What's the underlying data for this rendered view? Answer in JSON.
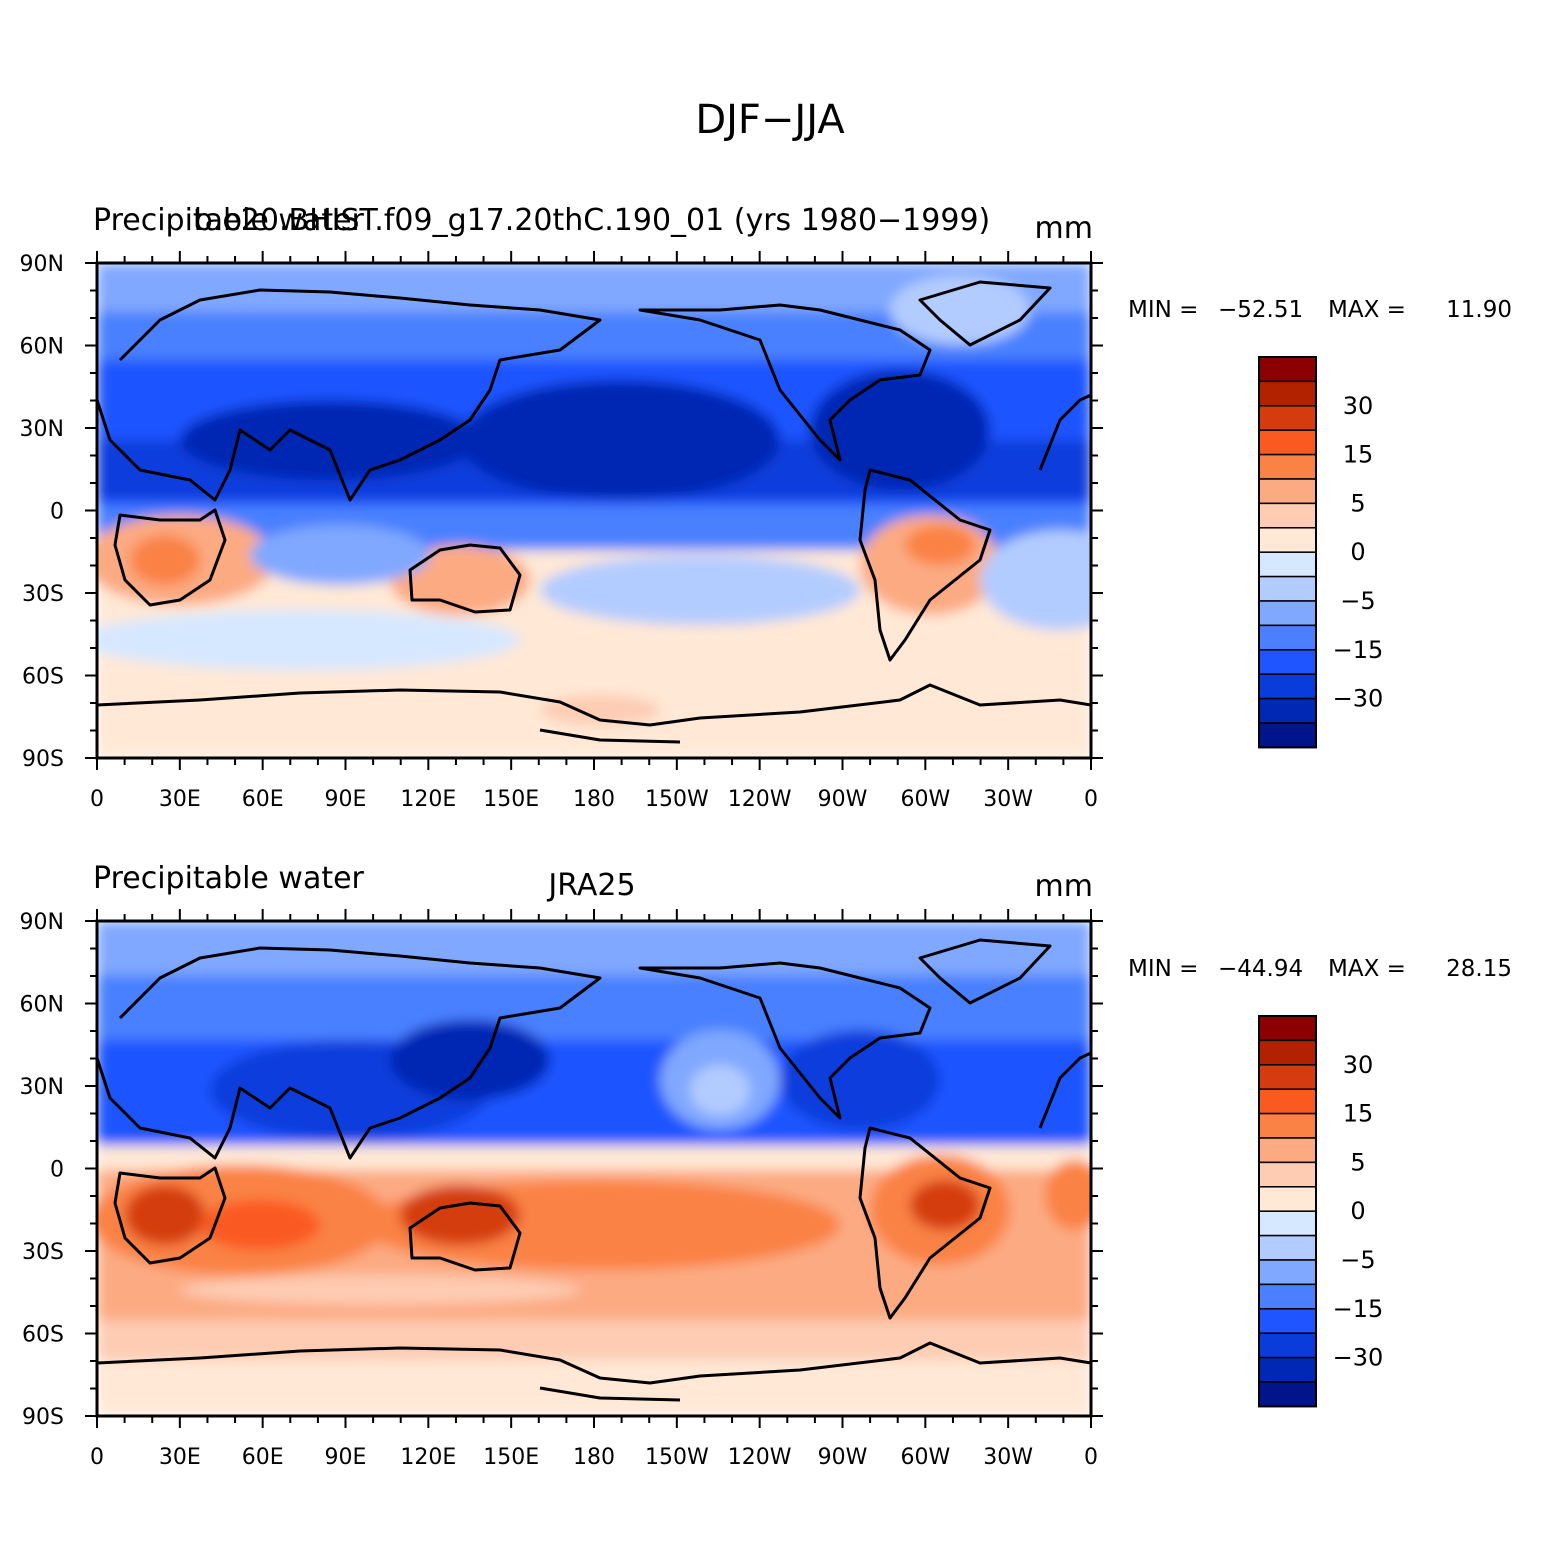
{
  "figure": {
    "title": "DJF−JJA"
  },
  "panels": [
    {
      "left_title": "Precipitable water",
      "center_title": "b.e20.BHIST.f09_g17.20thC.190_01 (yrs 1980−1999)",
      "units": "mm",
      "stats": {
        "min_label": "MIN = ",
        "min": "−52.51",
        "max_label": "MAX = ",
        "max": "11.90"
      }
    },
    {
      "left_title": "Precipitable water",
      "center_title": "JRA25",
      "units": "mm",
      "stats": {
        "min_label": "MIN = ",
        "min": "−44.94",
        "max_label": "MAX = ",
        "max": "28.15"
      }
    }
  ],
  "axes": {
    "x_ticks": [
      "0",
      "30E",
      "60E",
      "90E",
      "120E",
      "150E",
      "180",
      "150W",
      "120W",
      "90W",
      "60W",
      "30W",
      "0"
    ],
    "y_ticks": [
      "90N",
      "60N",
      "30N",
      "0",
      "30S",
      "60S",
      "90S"
    ]
  },
  "colorbar": {
    "labels": [
      "30",
      "15",
      "5",
      "0",
      "−5",
      "−15",
      "−30"
    ],
    "colors_top_to_bottom": [
      "#8b0000",
      "#b22200",
      "#d43c0f",
      "#fa5a20",
      "#fa8245",
      "#fcaa82",
      "#fdccb3",
      "#ffe8d6",
      "#d6e8ff",
      "#b3ccff",
      "#80a8ff",
      "#4a80ff",
      "#1e55ff",
      "#0a3cdc",
      "#0028b4",
      "#00148c"
    ]
  },
  "colors": {
    "ocean_land_base": "#ffe8d6",
    "coastline": "#000000"
  }
}
